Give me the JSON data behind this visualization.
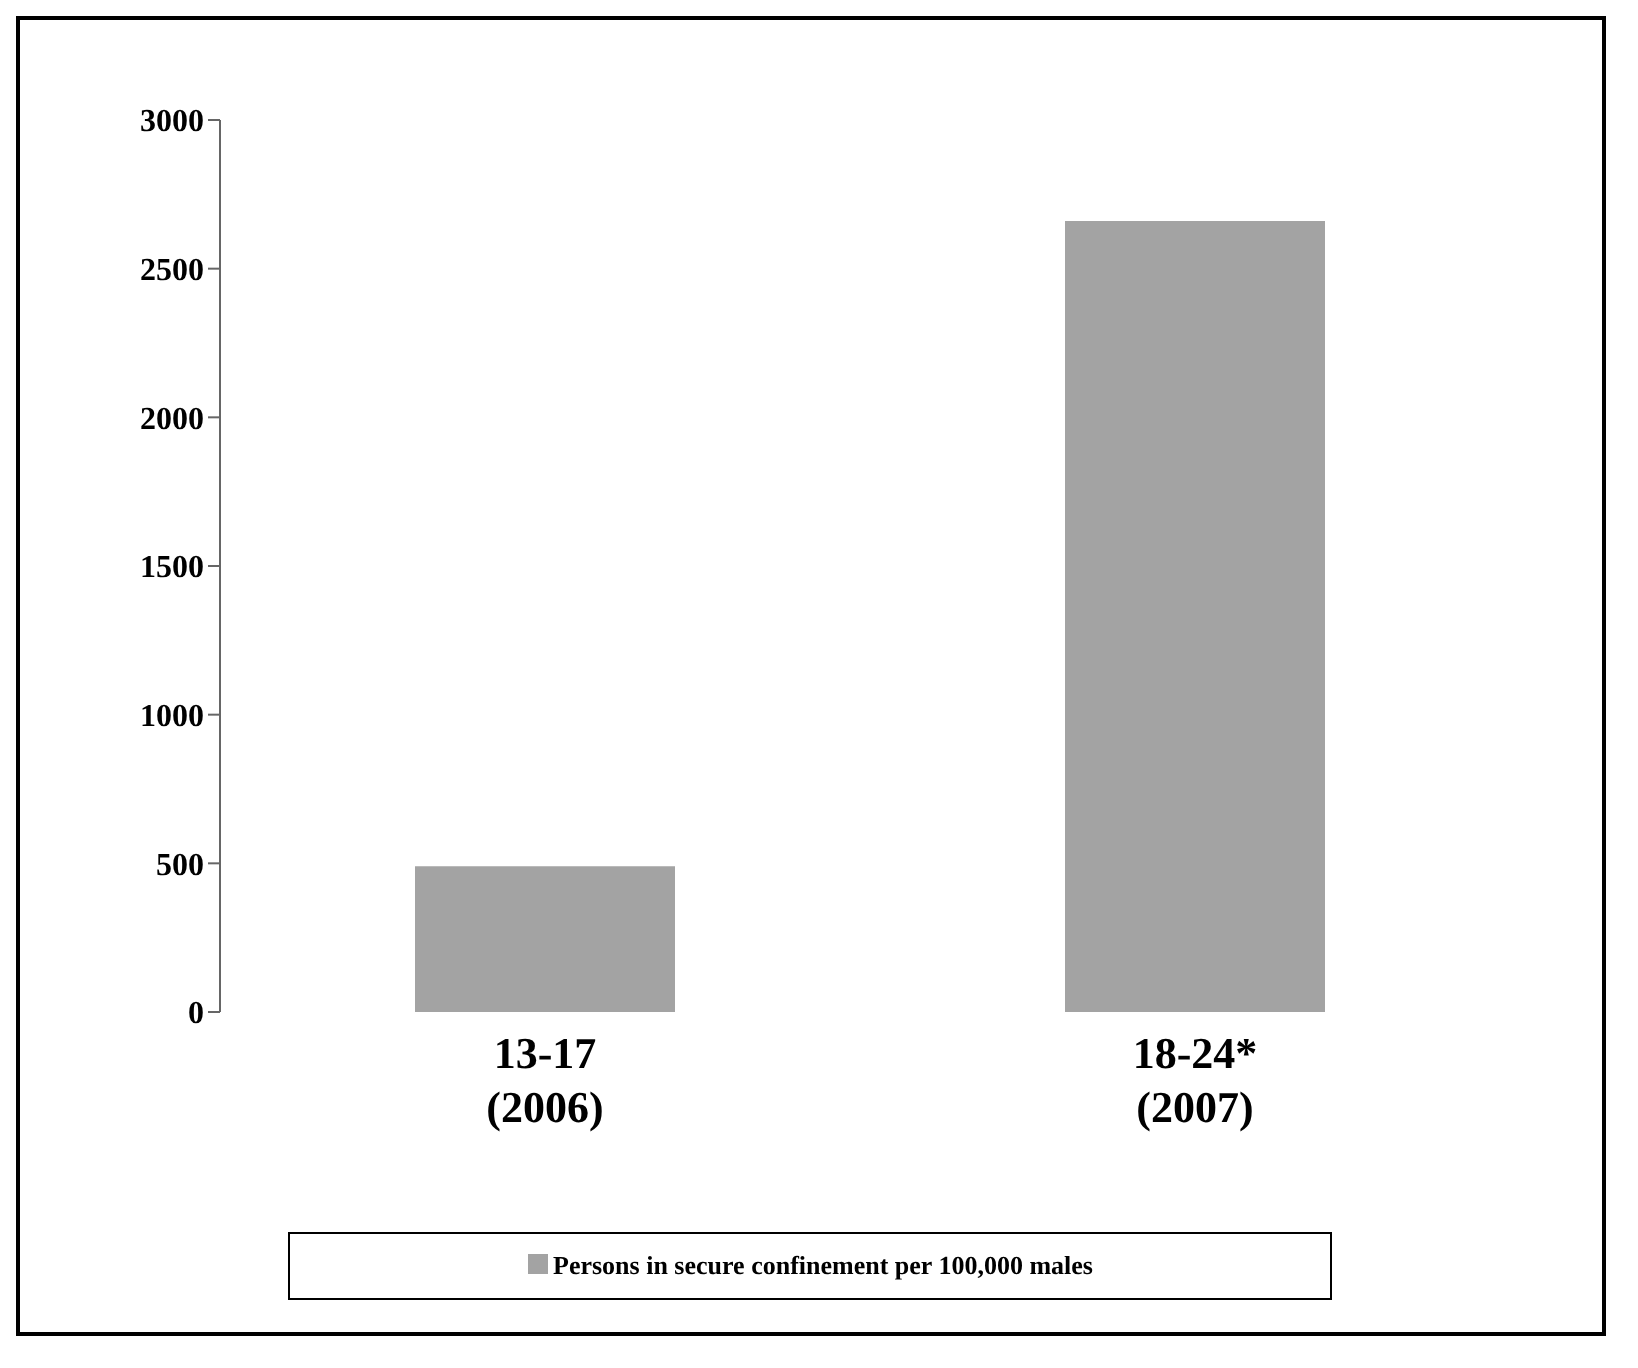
{
  "chart_data": {
    "type": "bar",
    "categories": [
      "13-17\n(2006)",
      "18-24*\n(2007)"
    ],
    "series": [
      {
        "name": "Persons in secure confinement per 100,000 males",
        "color": "#a3a3a3",
        "values": [
          490,
          2660
        ]
      }
    ],
    "ylim": [
      0,
      3000
    ],
    "yticks": [
      0,
      500,
      1000,
      1500,
      2000,
      2500,
      3000
    ],
    "grid": false,
    "legend": "bottom"
  }
}
